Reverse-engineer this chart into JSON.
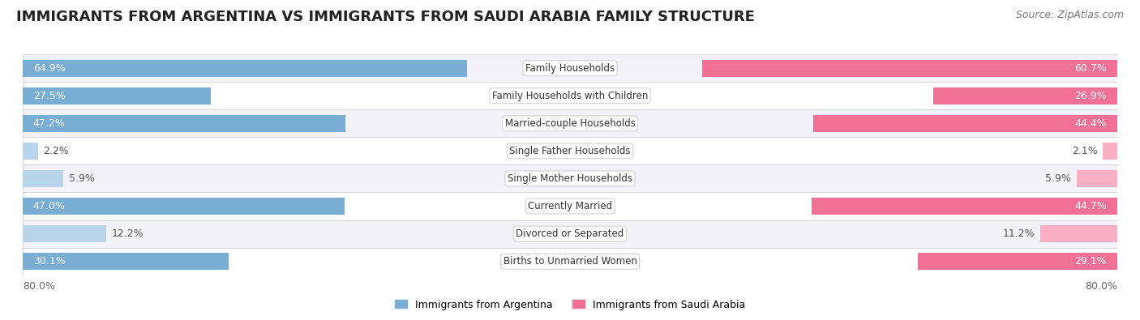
{
  "title": "IMMIGRANTS FROM ARGENTINA VS IMMIGRANTS FROM SAUDI ARABIA FAMILY STRUCTURE",
  "source": "Source: ZipAtlas.com",
  "categories": [
    "Family Households",
    "Family Households with Children",
    "Married-couple Households",
    "Single Father Households",
    "Single Mother Households",
    "Currently Married",
    "Divorced or Separated",
    "Births to Unmarried Women"
  ],
  "argentina_values": [
    64.9,
    27.5,
    47.2,
    2.2,
    5.9,
    47.0,
    12.2,
    30.1
  ],
  "saudi_values": [
    60.7,
    26.9,
    44.4,
    2.1,
    5.9,
    44.7,
    11.2,
    29.1
  ],
  "argentina_color_large": "#7aadd4",
  "argentina_color_small": "#b8d4ea",
  "saudi_color_large": "#f07096",
  "saudi_color_small": "#f9b0c4",
  "argentina_label": "Immigrants from Argentina",
  "saudi_label": "Immigrants from Saudi Arabia",
  "max_value": 80.0,
  "row_bg_light": "#f2f2f8",
  "row_bg_white": "#ffffff",
  "title_fontsize": 13,
  "source_fontsize": 9,
  "bar_height": 0.62,
  "label_fontsize": 9,
  "category_fontsize": 8.5,
  "large_threshold": 15.0
}
